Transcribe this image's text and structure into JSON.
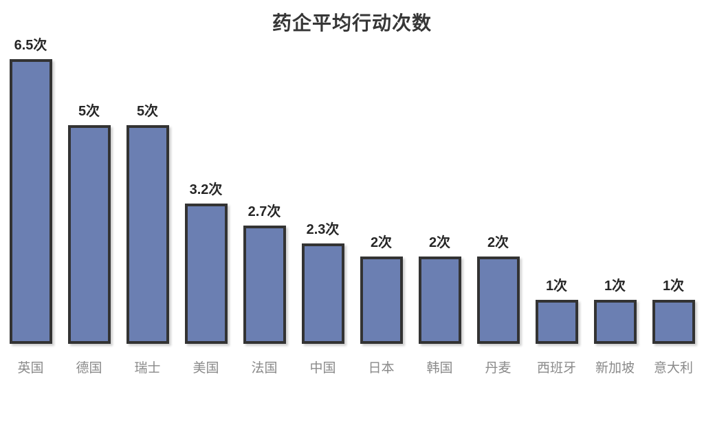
{
  "title": "药企平均行动次数",
  "chart_data": {
    "type": "bar",
    "title": "药企平均行动次数",
    "categories": [
      "英国",
      "德国",
      "瑞士",
      "美国",
      "法国",
      "中国",
      "日本",
      "韩国",
      "丹麦",
      "西班牙",
      "新加坡",
      "意大利"
    ],
    "values": [
      6.5,
      5,
      5,
      3.2,
      2.7,
      2.3,
      2,
      2,
      2,
      1,
      1,
      1
    ],
    "value_labels": [
      "6.5次",
      "5次",
      "5次",
      "3.2次",
      "2.7次",
      "2.3次",
      "2次",
      "2次",
      "2次",
      "1次",
      "1次",
      "1次"
    ],
    "unit_suffix": "次",
    "xlabel": "",
    "ylabel": "",
    "ylim": [
      0,
      6.5
    ],
    "grid": false,
    "legend": false,
    "axes_visible": false,
    "colors": {
      "bar_fill": "#6b7fb2",
      "bar_border": "#333333",
      "value_label": "#262626",
      "category_label": "#8a8a8a",
      "title": "#363636",
      "background": "#ffffff"
    }
  }
}
